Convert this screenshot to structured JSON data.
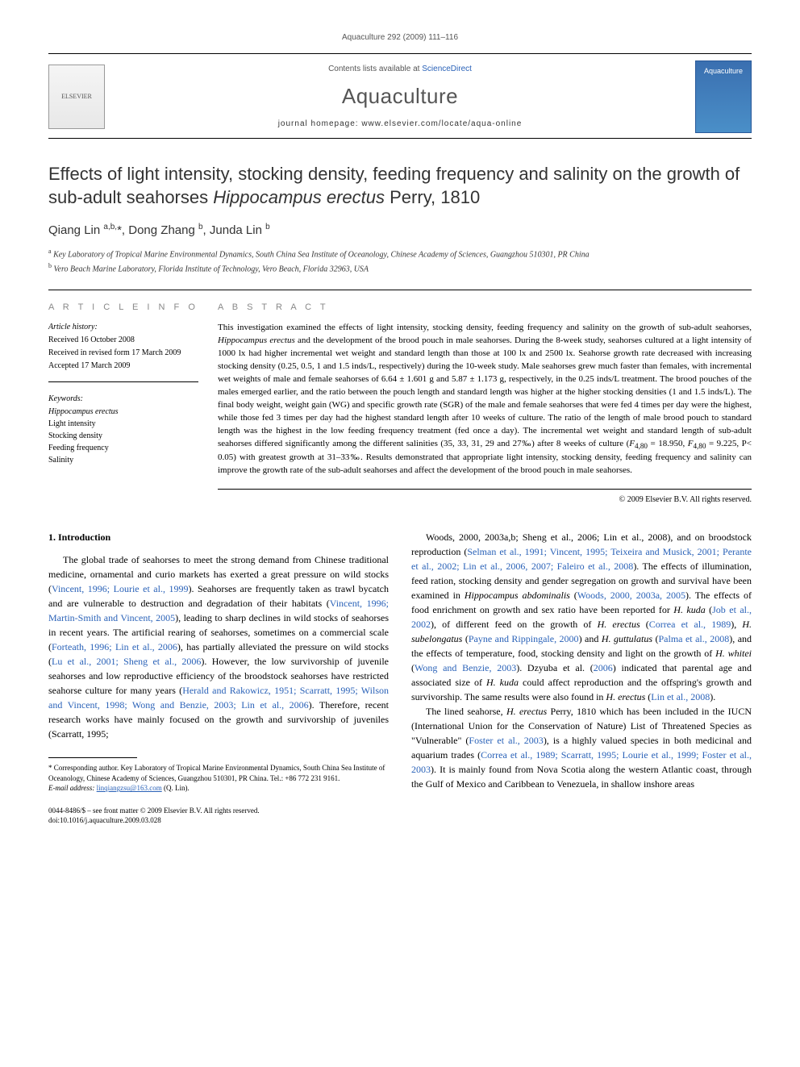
{
  "running_header": "Aquaculture 292 (2009) 111–116",
  "banner": {
    "publisher_logo_text": "ELSEVIER",
    "contents_line_prefix": "Contents lists available at ",
    "contents_line_link": "ScienceDirect",
    "journal_title": "Aquaculture",
    "homepage_line": "journal homepage: www.elsevier.com/locate/aqua-online",
    "cover_badge": "Aquaculture"
  },
  "article": {
    "title_pre": "Effects of light intensity, stocking density, feeding frequency and salinity on the growth of sub-adult seahorses ",
    "title_italic": "Hippocampus erectus",
    "title_post": " Perry, 1810",
    "authors_html": "Qiang Lin <sup>a,b,</sup>*, Dong Zhang <sup>b</sup>, Junda Lin <sup>b</sup>",
    "affiliations": {
      "a": "Key Laboratory of Tropical Marine Environmental Dynamics, South China Sea Institute of Oceanology, Chinese Academy of Sciences, Guangzhou 510301, PR China",
      "b": "Vero Beach Marine Laboratory, Florida Institute of Technology, Vero Beach, Florida 32963, USA"
    }
  },
  "info": {
    "heading": "A R T I C L E   I N F O",
    "history_label": "Article history:",
    "received": "Received 16 October 2008",
    "revised": "Received in revised form 17 March 2009",
    "accepted": "Accepted 17 March 2009",
    "keywords_label": "Keywords:",
    "keywords": [
      "Hippocampus erectus",
      "Light intensity",
      "Stocking density",
      "Feeding frequency",
      "Salinity"
    ]
  },
  "abstract": {
    "heading": "A B S T R A C T",
    "text": "This investigation examined the effects of light intensity, stocking density, feeding frequency and salinity on the growth of sub-adult seahorses, Hippocampus erectus and the development of the brood pouch in male seahorses. During the 8-week study, seahorses cultured at a light intensity of 1000 lx had higher incremental wet weight and standard length than those at 100 lx and 2500 lx. Seahorse growth rate decreased with increasing stocking density (0.25, 0.5, 1 and 1.5 inds/L, respectively) during the 10-week study. Male seahorses grew much faster than females, with incremental wet weights of male and female seahorses of 6.64 ± 1.601 g and 5.87 ± 1.173 g, respectively, in the 0.25 inds/L treatment. The brood pouches of the males emerged earlier, and the ratio between the pouch length and standard length was higher at the higher stocking densities (1 and 1.5 inds/L). The final body weight, weight gain (WG) and specific growth rate (SGR) of the male and female seahorses that were fed 4 times per day were the highest, while those fed 3 times per day had the highest standard length after 10 weeks of culture. The ratio of the length of male brood pouch to standard length was the highest in the low feeding frequency treatment (fed once a day). The incremental wet weight and standard length of sub-adult seahorses differed significantly among the different salinities (35, 33, 31, 29 and 27‰) after 8 weeks of culture (F4,80 = 18.950, F4,80 = 9.225, P< 0.05) with greatest growth at 31–33‰. Results demonstrated that appropriate light intensity, stocking density, feeding frequency and salinity can improve the growth rate of the sub-adult seahorses and affect the development of the brood pouch in male seahorses.",
    "copyright": "© 2009 Elsevier B.V. All rights reserved."
  },
  "body": {
    "section_heading": "1. Introduction",
    "col1_p1": "The global trade of seahorses to meet the strong demand from Chinese traditional medicine, ornamental and curio markets has exerted a great pressure on wild stocks (Vincent, 1996; Lourie et al., 1999). Seahorses are frequently taken as trawl bycatch and are vulnerable to destruction and degradation of their habitats (Vincent, 1996; Martin-Smith and Vincent, 2005), leading to sharp declines in wild stocks of seahorses in recent years. The artificial rearing of seahorses, sometimes on a commercial scale (Forteath, 1996; Lin et al., 2006), has partially alleviated the pressure on wild stocks (Lu et al., 2001; Sheng et al., 2006). However, the low survivorship of juvenile seahorses and low reproductive efficiency of the broodstock seahorses have restricted seahorse culture for many years (Herald and Rakowicz, 1951; Scarratt, 1995; Wilson and Vincent, 1998; Wong and Benzie, 2003; Lin et al., 2006). Therefore, recent research works have mainly focused on the growth and survivorship of juveniles (Scarratt, 1995;",
    "col2_p1": "Woods, 2000, 2003a,b; Sheng et al., 2006; Lin et al., 2008), and on broodstock reproduction (Selman et al., 1991; Vincent, 1995; Teixeira and Musick, 2001; Perante et al., 2002; Lin et al., 2006, 2007; Faleiro et al., 2008). The effects of illumination, feed ration, stocking density and gender segregation on growth and survival have been examined in Hippocampus abdominalis (Woods, 2000, 2003a, 2005). The effects of food enrichment on growth and sex ratio have been reported for H. kuda (Job et al., 2002), of different feed on the growth of H. erectus (Correa et al., 1989), H. subelongatus (Payne and Rippingale, 2000) and H. guttulatus (Palma et al., 2008), and the effects of temperature, food, stocking density and light on the growth of H. whitei (Wong and Benzie, 2003). Dzyuba et al. (2006) indicated that parental age and associated size of H. kuda could affect reproduction and the offspring's growth and survivorship. The same results were also found in H. erectus (Lin et al., 2008).",
    "col2_p2": "The lined seahorse, H. erectus Perry, 1810 which has been included in the IUCN (International Union for the Conservation of Nature) List of Threatened Species as \"Vulnerable\" (Foster et al., 2003), is a highly valued species in both medicinal and aquarium trades (Correa et al., 1989; Scarratt, 1995; Lourie et al., 1999; Foster et al., 2003). It is mainly found from Nova Scotia along the western Atlantic coast, through the Gulf of Mexico and Caribbean to Venezuela, in shallow inshore areas"
  },
  "footnote": {
    "corr": "* Corresponding author. Key Laboratory of Tropical Marine Environmental Dynamics, South China Sea Institute of Oceanology, Chinese Academy of Sciences, Guangzhou 510301, PR China. Tel.: +86 772 231 9161.",
    "email_label": "E-mail address:",
    "email": "linqiangzsu@163.com",
    "email_suffix": "(Q. Lin)."
  },
  "doi": {
    "line1": "0044-8486/$ – see front matter © 2009 Elsevier B.V. All rights reserved.",
    "line2": "doi:10.1016/j.aquaculture.2009.03.028"
  },
  "colors": {
    "link": "#2a62b8",
    "heading_gray": "#888",
    "cover_blue": "#3a6fb0"
  }
}
